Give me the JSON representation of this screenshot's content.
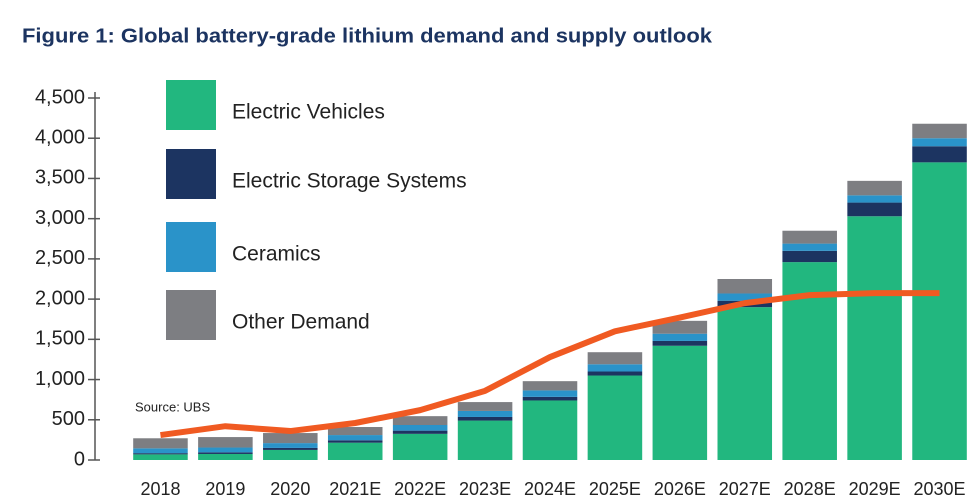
{
  "chart_data": {
    "type": "stacked_bar",
    "title": "Figure 1: Global battery-grade lithium demand and supply outlook",
    "annotation": "Source: UBS",
    "categories": [
      "2018",
      "2019",
      "2020",
      "2021E",
      "2022E",
      "2023E",
      "2024E",
      "2025E",
      "2026E",
      "2027E",
      "2028E",
      "2029E",
      "2030E"
    ],
    "series": [
      {
        "name": "Electric Vehicles",
        "color": "#22b77f",
        "values": [
          70,
          75,
          125,
          215,
          325,
          490,
          740,
          1050,
          1420,
          1900,
          2460,
          3030,
          3700
        ]
      },
      {
        "name": "Electric Storage Systems",
        "color": "#1c3461",
        "values": [
          15,
          20,
          25,
          30,
          40,
          45,
          45,
          50,
          60,
          80,
          140,
          170,
          200
        ]
      },
      {
        "name": "Ceramics",
        "color": "#2a93c9",
        "values": [
          60,
          60,
          60,
          65,
          70,
          75,
          80,
          90,
          90,
          90,
          90,
          90,
          100
        ]
      },
      {
        "name": "Other Demand",
        "color": "#7d7e82",
        "values": [
          125,
          130,
          125,
          100,
          110,
          110,
          115,
          150,
          160,
          180,
          160,
          180,
          180
        ]
      }
    ],
    "supply_line": {
      "color": "#f05a22",
      "values": [
        310,
        420,
        360,
        460,
        620,
        860,
        1280,
        1600,
        1770,
        1950,
        2050,
        2075,
        2075
      ]
    },
    "ylim": [
      0,
      4500
    ],
    "yticks": [
      0,
      500,
      {
        "value": 1000,
        "label": "1,000"
      },
      {
        "value": 1500,
        "label": "1,500"
      },
      {
        "value": 2000,
        "label": "2,000"
      },
      {
        "value": 2500,
        "label": "2,500"
      },
      {
        "value": 3000,
        "label": "3,000"
      },
      {
        "value": 3500,
        "label": "3,500"
      },
      {
        "value": 4000,
        "label": "4,000"
      },
      {
        "value": 4500,
        "label": "4,500"
      }
    ]
  }
}
